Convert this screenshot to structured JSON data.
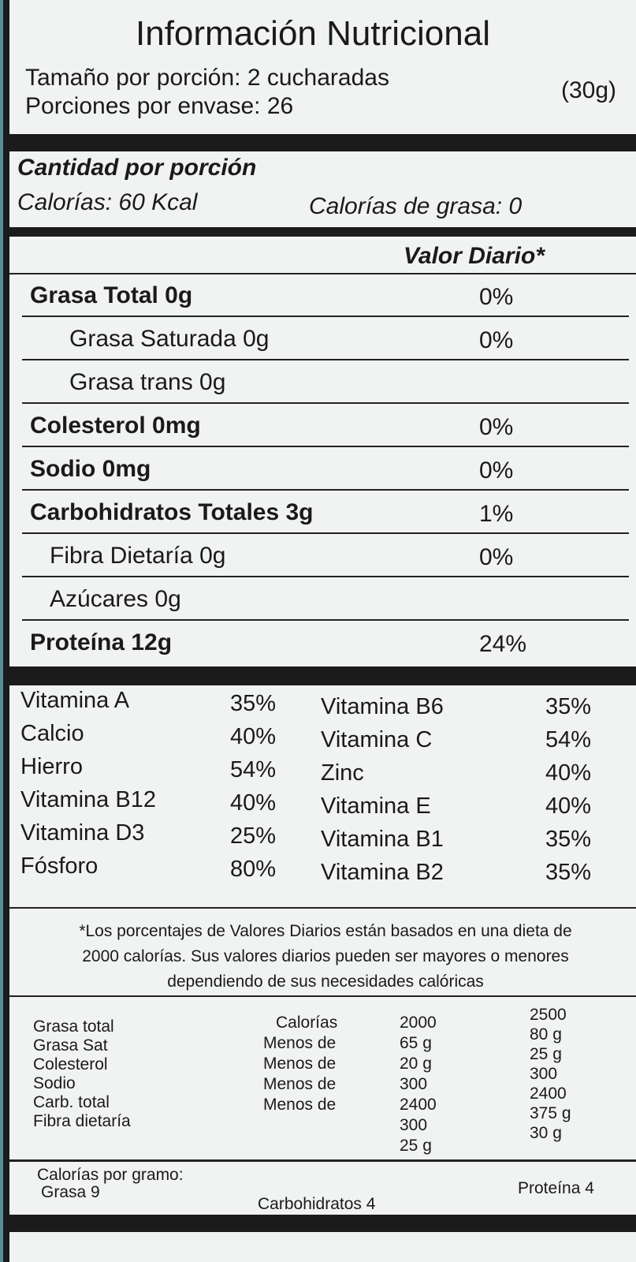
{
  "title": "Información Nutricional",
  "serving_size": "Tamaño por porción: 2 cucharadas",
  "serving_grams": "(30g)",
  "servings_per_container": "Porciones por envase: 26",
  "amount_per_serving": "Cantidad por porción",
  "calories": "Calorías: 60 Kcal",
  "calories_fat": "Calorías de grasa: 0",
  "daily_value_header": "Valor Diario*",
  "nutrients": [
    {
      "name": "Grasa Total 0g",
      "dv": "0%",
      "bold": true,
      "indent": 0
    },
    {
      "name": "Grasa Saturada 0g",
      "dv": "0%",
      "bold": false,
      "indent": 2
    },
    {
      "name": "Grasa trans 0g",
      "dv": "",
      "bold": false,
      "indent": 2
    },
    {
      "name": "Colesterol 0mg",
      "dv": "0%",
      "bold": true,
      "indent": 0
    },
    {
      "name": "Sodio 0mg",
      "dv": "0%",
      "bold": true,
      "indent": 0
    },
    {
      "name": "Carbohidratos Totales 3g",
      "dv": "1%",
      "bold": true,
      "indent": 0
    },
    {
      "name": "Fibra Dietaría 0g",
      "dv": "0%",
      "bold": false,
      "indent": 1
    },
    {
      "name": "Azúcares 0g",
      "dv": "",
      "bold": false,
      "indent": 1
    },
    {
      "name": "Proteína 12g",
      "dv": "24%",
      "bold": true,
      "indent": 0
    }
  ],
  "vitamins_left": [
    {
      "name": "Vitamina A",
      "dv": "35%"
    },
    {
      "name": "Calcio",
      "dv": "40%"
    },
    {
      "name": "Hierro",
      "dv": "54%"
    },
    {
      "name": "Vitamina B12",
      "dv": "40%"
    },
    {
      "name": "Vitamina D3",
      "dv": "25%"
    },
    {
      "name": "Fósforo",
      "dv": "80%"
    }
  ],
  "vitamins_right": [
    {
      "name": "Vitamina B6",
      "dv": "35%"
    },
    {
      "name": "Vitamina C",
      "dv": "54%"
    },
    {
      "name": "Zinc",
      "dv": "40%"
    },
    {
      "name": "Vitamina E",
      "dv": "40%"
    },
    {
      "name": "Vitamina B1",
      "dv": "35%"
    },
    {
      "name": "Vitamina B2",
      "dv": "35%"
    }
  ],
  "footnote": [
    "*Los porcentajes de Valores Diarios están basados en una dieta de",
    "2000 calorías. Sus valores diarios pueden ser mayores o menores",
    "dependiendo de sus necesidades calóricas"
  ],
  "reference_table": {
    "labels": [
      "Grasa total",
      "Grasa Sat",
      "Colesterol",
      "Sodio",
      "Carb. total",
      "Fibra dietaría"
    ],
    "qualifiers": [
      "Calorías",
      "Menos de",
      "Menos de",
      "Menos de",
      "Menos de"
    ],
    "col2000": [
      "2000",
      "65 g",
      "20 g",
      "300",
      "2400",
      "300",
      "25 g"
    ],
    "col2500": [
      "2500",
      "80 g",
      "25 g",
      "300",
      "2400",
      "375 g",
      "30 g"
    ]
  },
  "calories_per_gram": {
    "label": "Calorías por gramo:",
    "fat": "Grasa 9",
    "carbs": "Carbohidratos 4",
    "protein": "Proteína 4"
  }
}
